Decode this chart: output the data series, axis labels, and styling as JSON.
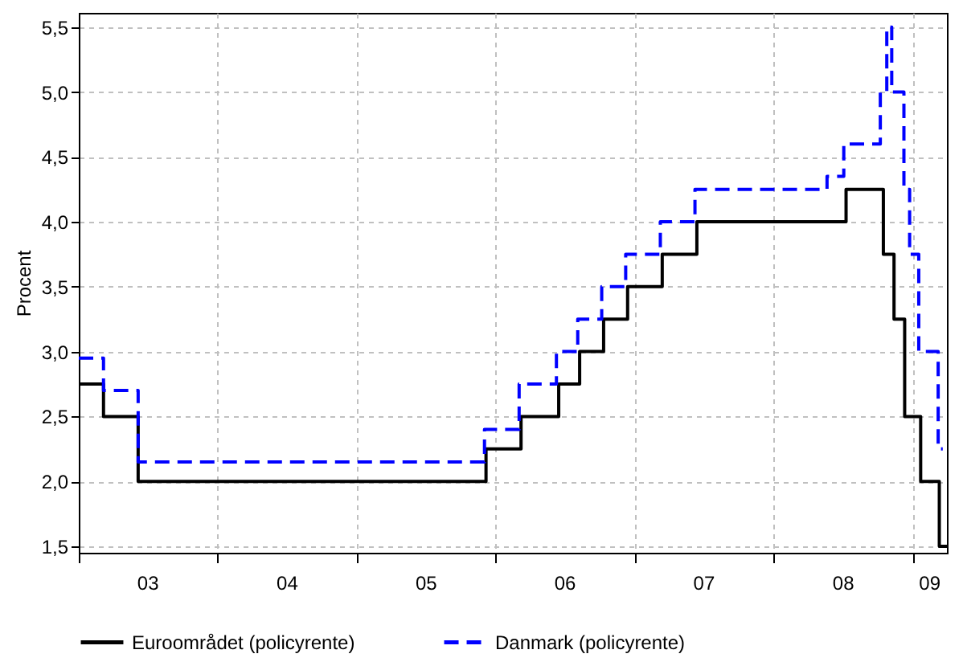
{
  "chart_data": {
    "type": "step",
    "ylabel": "Procent",
    "xlim": [
      "2003-01-01",
      "2009-03-31"
    ],
    "ylim": [
      1.45,
      5.61
    ],
    "xticks": [
      {
        "value": "2003-01-01",
        "label": null
      },
      {
        "value": "2003-07-02",
        "label": "03"
      },
      {
        "value": "2004-01-01",
        "label": null
      },
      {
        "value": "2004-07-02",
        "label": "04"
      },
      {
        "value": "2005-01-01",
        "label": null
      },
      {
        "value": "2005-07-02",
        "label": "05"
      },
      {
        "value": "2006-01-01",
        "label": null
      },
      {
        "value": "2006-07-02",
        "label": "06"
      },
      {
        "value": "2007-01-01",
        "label": null
      },
      {
        "value": "2007-07-02",
        "label": "07"
      },
      {
        "value": "2008-01-01",
        "label": null
      },
      {
        "value": "2008-07-02",
        "label": "08"
      },
      {
        "value": "2009-01-01",
        "label": null
      },
      {
        "value": "2009-02-14",
        "label": "09"
      }
    ],
    "yticks": [
      {
        "value": 1.5,
        "label": "1,5"
      },
      {
        "value": 2,
        "label": "2,0"
      },
      {
        "value": 2.5,
        "label": "2,5"
      },
      {
        "value": 3,
        "label": "3,0"
      },
      {
        "value": 3.5,
        "label": "3,5"
      },
      {
        "value": 4,
        "label": "4,0"
      },
      {
        "value": 4.5,
        "label": "4,5"
      },
      {
        "value": 5,
        "label": "5,0"
      },
      {
        "value": 5.5,
        "label": "5,5"
      }
    ],
    "grid": true,
    "legend": "bottom",
    "series": [
      {
        "name": "Euroområdet (policyrente)",
        "color": "#000000",
        "line_style": "solid",
        "x": [
          "2003-01-01",
          "2003-03-07",
          "2003-06-06",
          "2005-12-06",
          "2006-03-08",
          "2006-06-15",
          "2006-08-09",
          "2006-10-11",
          "2006-12-13",
          "2007-03-14",
          "2007-06-13",
          "2008-07-09",
          "2008-10-15",
          "2008-11-12",
          "2008-12-10",
          "2009-01-21",
          "2009-03-11",
          "2009-03-31"
        ],
        "values": [
          2.75,
          2.5,
          2.0,
          2.25,
          2.5,
          2.75,
          3.0,
          3.25,
          3.5,
          3.75,
          4.0,
          4.25,
          3.75,
          3.25,
          2.5,
          2.0,
          1.5,
          1.5
        ]
      },
      {
        "name": "Danmark (policyrente)",
        "color": "#0000ff",
        "line_style": "dashed",
        "x": [
          "2003-01-01",
          "2003-03-07",
          "2003-06-06",
          "2005-12-02",
          "2006-03-03",
          "2006-06-09",
          "2006-08-04",
          "2006-10-06",
          "2006-12-08",
          "2007-03-09",
          "2007-06-08",
          "2008-05-20",
          "2008-07-03",
          "2008-10-07",
          "2008-10-24",
          "2008-11-06",
          "2008-12-08",
          "2008-12-23",
          "2009-01-16",
          "2009-03-08",
          "2009-03-20"
        ],
        "values": [
          2.95,
          2.7,
          2.15,
          2.4,
          2.75,
          3.0,
          3.25,
          3.5,
          3.75,
          4.0,
          4.25,
          4.35,
          4.6,
          5.0,
          5.5,
          5.0,
          4.25,
          3.75,
          3.0,
          2.25,
          2.25
        ]
      }
    ]
  }
}
